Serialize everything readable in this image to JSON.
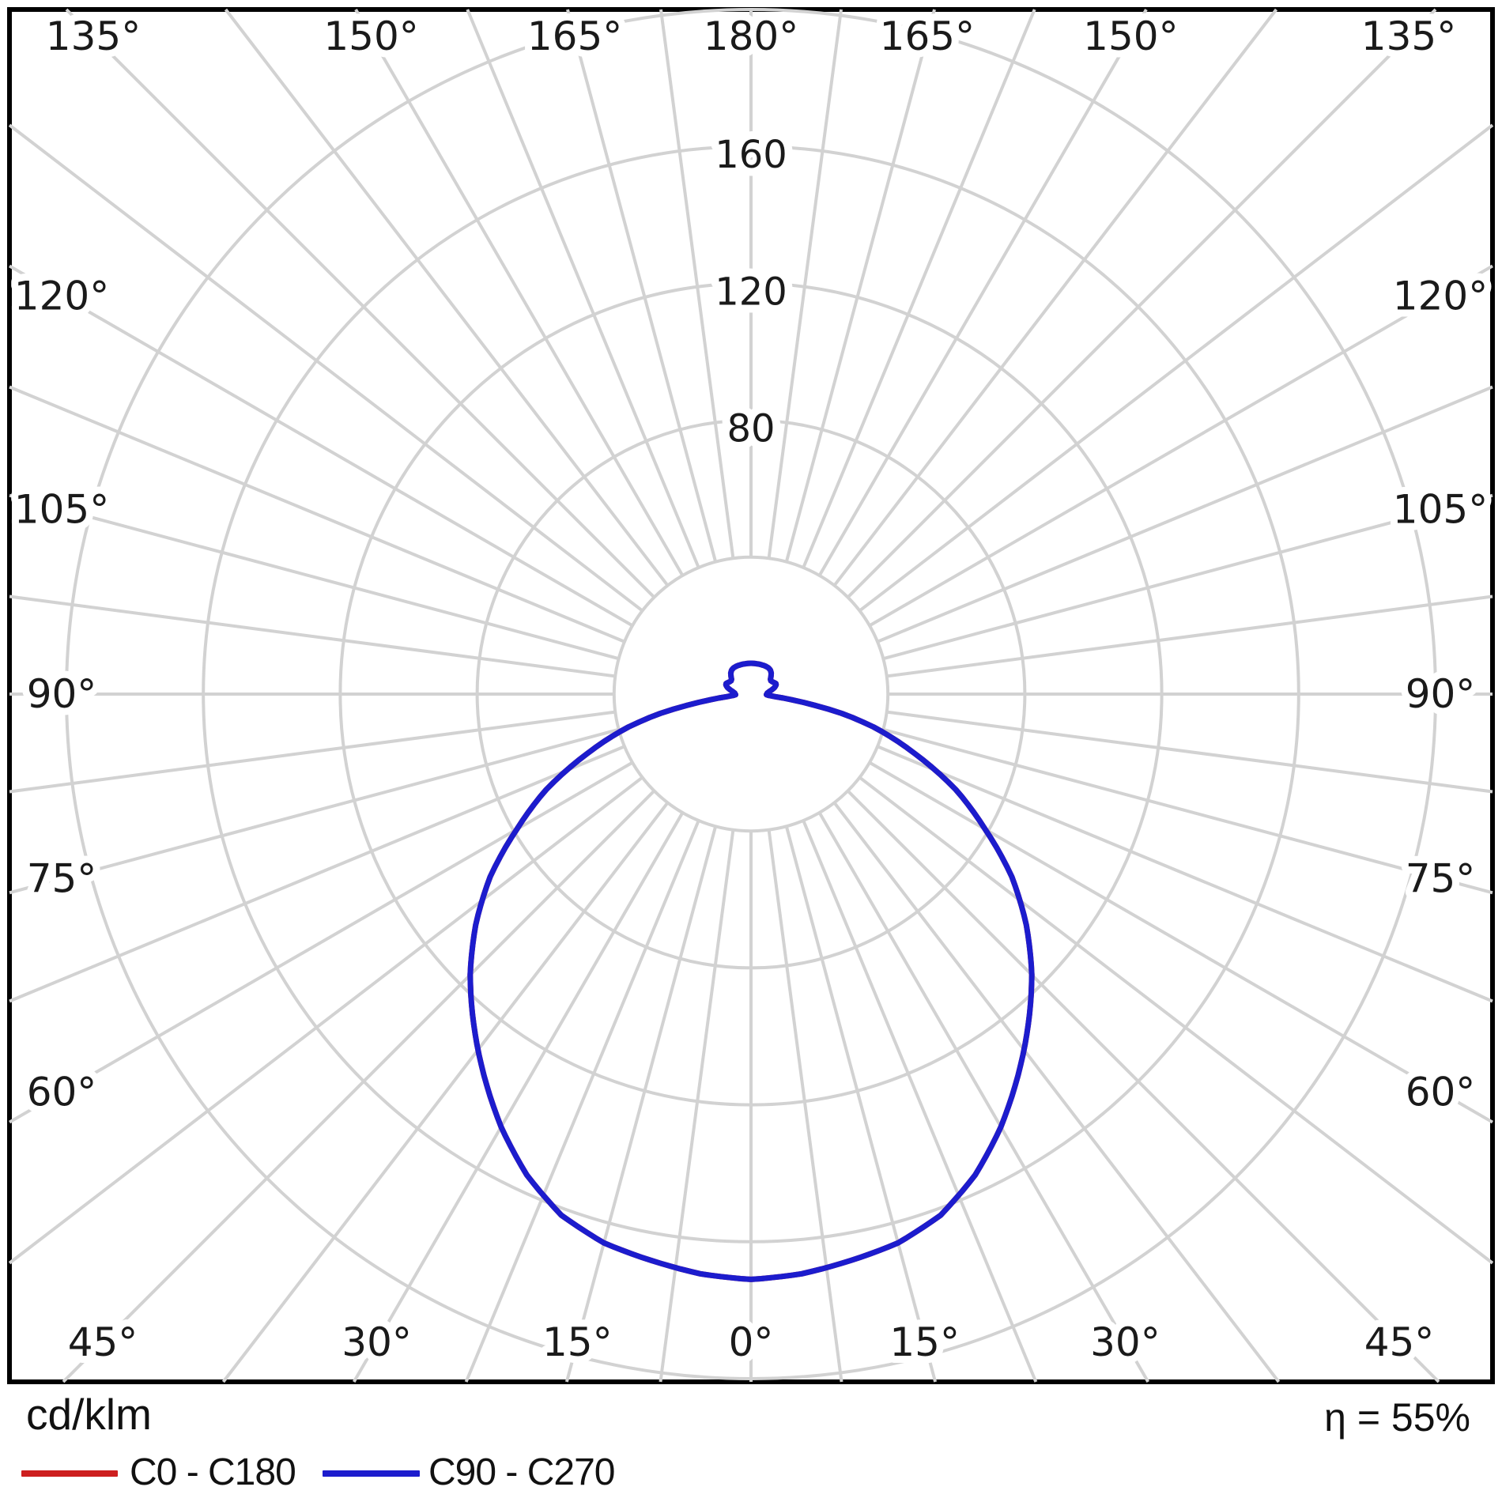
{
  "chart": {
    "unit_label": "cd/klm",
    "efficiency": "η = 55%",
    "legend": [
      {
        "label": "C0 - C180",
        "color": "#cd1f1f"
      },
      {
        "label": "C90 - C270",
        "color": "#1c1ccd"
      }
    ],
    "angle_labels": [
      "0°",
      "15°",
      "30°",
      "45°",
      "60°",
      "75°",
      "90°",
      "105°",
      "120°",
      "135°",
      "150°",
      "165°",
      "180°"
    ],
    "ring_labels": [
      "80",
      "120",
      "160"
    ],
    "colors": {
      "grid": "#d2d2d2",
      "border": "#000000",
      "text": "#1a1a1a",
      "background": "#ffffff",
      "curve_c0": "#cd1f1f",
      "curve_c90": "#1c1ccd"
    }
  },
  "chart_data": {
    "type": "polar",
    "title": "",
    "radial_unit": "cd/klm",
    "radial_ticks": [
      40,
      80,
      120,
      160,
      200
    ],
    "radial_tick_labels_shown": [
      80,
      120,
      160
    ],
    "radial_max": 200,
    "angle_ticks_deg": [
      0,
      15,
      30,
      45,
      60,
      75,
      90,
      105,
      120,
      135,
      150,
      165,
      180
    ],
    "minor_angle_step_deg": 7.5,
    "symmetry": "values mirrored left/right about the vertical 0°–180° axis, 0° = nadir (down)",
    "gamma_deg": [
      0,
      5,
      10,
      15,
      20,
      25,
      30,
      35,
      40,
      45,
      50,
      55,
      60,
      65,
      70,
      75,
      78,
      80,
      82,
      84,
      86,
      88,
      90,
      94,
      98,
      102,
      106,
      110,
      113,
      116,
      120,
      124,
      127,
      131,
      136,
      141,
      146,
      152,
      160,
      170,
      180
    ],
    "series": [
      {
        "name": "C0 - C180",
        "color": "#cd1f1f",
        "values": [
          171,
          170,
          168,
          166,
          162,
          155,
          146,
          136,
          126,
          116,
          105,
          93,
          79,
          66,
          51,
          37,
          27,
          19,
          12,
          7,
          5,
          4.5,
          4.6,
          4.8,
          5.4,
          6.3,
          7.2,
          7.8,
          7.9,
          7.6,
          7.2,
          7.0,
          7.1,
          7.7,
          8.5,
          9.0,
          9.2,
          9.2,
          9.1,
          9.0,
          9.0
        ]
      },
      {
        "name": "C90 - C270",
        "color": "#1c1ccd",
        "values": [
          171,
          170,
          168,
          166,
          162,
          155,
          146,
          136,
          126,
          116,
          105,
          93,
          79,
          66,
          51,
          37,
          27,
          19,
          12,
          7,
          5,
          4.5,
          4.6,
          4.8,
          5.4,
          6.3,
          7.2,
          7.8,
          7.9,
          7.6,
          7.2,
          7.0,
          7.1,
          7.7,
          8.5,
          9.0,
          9.2,
          9.2,
          9.1,
          9.0,
          9.0
        ]
      }
    ],
    "efficiency_percent": 55
  }
}
